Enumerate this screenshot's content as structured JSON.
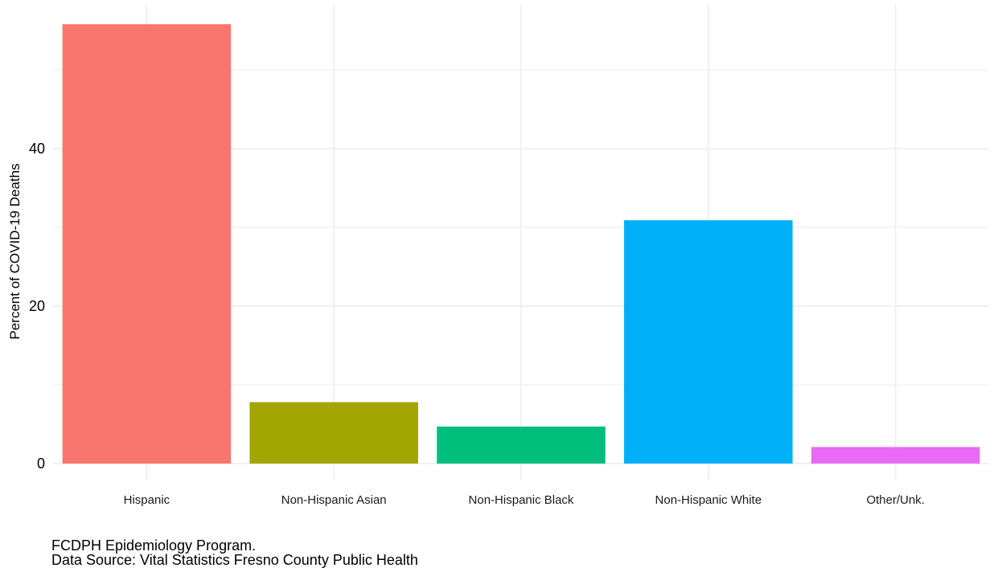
{
  "chart_data": {
    "type": "bar",
    "categories": [
      "Hispanic",
      "Non-Hispanic Asian",
      "Non-Hispanic Black",
      "Non-Hispanic White",
      "Other/Unk."
    ],
    "values": [
      55.8,
      7.8,
      4.7,
      30.9,
      2.1
    ],
    "colors": [
      "#F8766D",
      "#A3A500",
      "#00BF7D",
      "#00B0F6",
      "#E76BF3"
    ],
    "ylabel": "Percent of COVID-19 Deaths",
    "xlabel": "",
    "ylim": [
      0,
      58
    ],
    "yticks": [
      0,
      20,
      40
    ],
    "grid": true,
    "legend": "none"
  },
  "caption": {
    "line1": "FCDPH Epidemiology Program.",
    "line2": "Data Source: Vital Statistics Fresno County Public Health"
  }
}
